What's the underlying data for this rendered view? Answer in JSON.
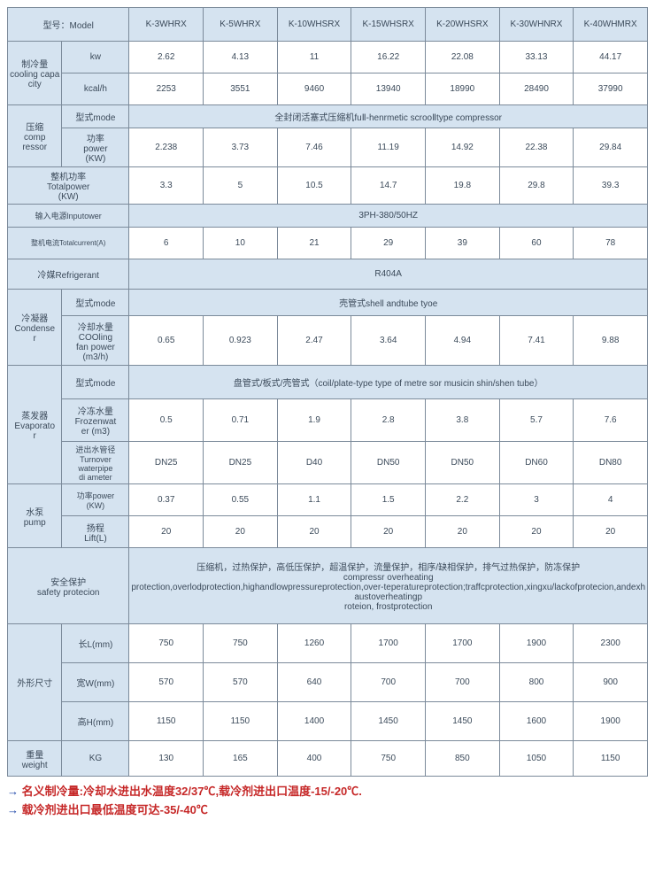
{
  "colors": {
    "header_bg": "#d5e3f0",
    "data_bg": "#ffffff",
    "border": "#7b8a9a",
    "text": "#3b4a5a",
    "note_red": "#c62828",
    "arrow_blue": "#1741a6"
  },
  "col_widths_pct": [
    8.5,
    10.5,
    11.57,
    11.57,
    11.57,
    11.57,
    11.57,
    11.57,
    11.57
  ],
  "models_header": "型号：Model",
  "models": [
    "K-3WHRX",
    "K-5WHRX",
    "K-10WHSRX",
    "K-15WHSRX",
    "K-20WHSRX",
    "K-30WHNRX",
    "K-40WHMRX"
  ],
  "rows": {
    "cooling_capacity": {
      "label": "制冷量\ncooling capacity",
      "sub1": "kw",
      "sub2": "kcal/h",
      "kw": [
        "2.62",
        "4.13",
        "11",
        "16.22",
        "22.08",
        "33.13",
        "44.17"
      ],
      "kcal": [
        "2253",
        "3551",
        "9460",
        "13940",
        "18990",
        "28490",
        "37990"
      ]
    },
    "compressor": {
      "label": "压缩\ncomp\nressor",
      "mode": "型式mode",
      "mode_text": "全封闭活塞式压缩机fuⅡ-henrmetic scrooⅡtype compressor",
      "power_label": "功率\npower\n(KW)",
      "power": [
        "2.238",
        "3.73",
        "7.46",
        "11.19",
        "14.92",
        "22.38",
        "29.84"
      ]
    },
    "total_power": {
      "label": "整机功率\nTotalpower\n(KW)",
      "vals": [
        "3.3",
        "5",
        "10.5",
        "14.7",
        "19.8",
        "29.8",
        "39.3"
      ]
    },
    "input_power": {
      "label": "输入电源lnputower",
      "val": "3PH-380/50HZ"
    },
    "total_current": {
      "label": "整机电流Totalcurrent(A)",
      "vals": [
        "6",
        "10",
        "21",
        "29",
        "39",
        "60",
        "78"
      ]
    },
    "refrigerant": {
      "label": "冷媒Refrigerant",
      "val": "R404A"
    },
    "condenser": {
      "label": "冷凝器\nCondense\nr",
      "mode": "型式mode",
      "mode_text": "壳管式shell andtube tyoe",
      "fan_label": "冷却水量\nCOOling\nfan power\n(m3/h)",
      "fan": [
        "0.65",
        "0.923",
        "2.47",
        "3.64",
        "4.94",
        "7.41",
        "9.88"
      ]
    },
    "evaporator": {
      "label": "蒸发器\nEvaporato\nr",
      "mode": "型式mode",
      "mode_text": "盘管式/板式/壳管式（coil/plate-type type of metre sor musicin shin/shen tube）",
      "frozen_label": "冷冻水量\nFrozenwat\ner (m3)",
      "frozen": [
        "0.5",
        "0.71",
        "1.9",
        "2.8",
        "3.8",
        "5.7",
        "7.6"
      ],
      "pipe_label": "进出水管径\nTurnover\nwaterpipe\ndi ameter",
      "pipe": [
        "DN25",
        "DN25",
        "D40",
        "DN50",
        "DN50",
        "DN60",
        "DN80"
      ]
    },
    "pump": {
      "label": "水泵\npump",
      "power_label": "功率power\n(KW)",
      "power": [
        "0.37",
        "0.55",
        "1.1",
        "1.5",
        "2.2",
        "3",
        "4"
      ],
      "lift_label": "扬程\nLift(L)",
      "lift": [
        "20",
        "20",
        "20",
        "20",
        "20",
        "20",
        "20"
      ]
    },
    "safety": {
      "label": "安全保护\nsafety protecion",
      "text": "压缩机，过热保护，高低压保护，超温保护，流量保护，相序/缺相保护，排气过热保护，防冻保护\ncompressr overheating\nprotection,overlodprotection,highandlowpressureprotection,over-teperatureprotection;traffcprotection,xingxu/lackofprotecion,andexhaustoverheatingp\nroteion,     frostprotection"
    },
    "dims": {
      "label": "外形尺寸",
      "L_label": "长L(mm)",
      "L": [
        "750",
        "750",
        "1260",
        "1700",
        "1700",
        "1900",
        "2300"
      ],
      "W_label": "宽W(mm)",
      "W": [
        "570",
        "570",
        "640",
        "700",
        "700",
        "800",
        "900"
      ],
      "H_label": "高H(mm)",
      "H": [
        "1150",
        "1150",
        "1400",
        "1450",
        "1450",
        "1600",
        "1900"
      ]
    },
    "weight": {
      "label": "重量\nweight",
      "unit": "KG",
      "vals": [
        "130",
        "165",
        "400",
        "750",
        "850",
        "1050",
        "1150"
      ]
    }
  },
  "notes": [
    "→ 名义制冷量:冷却水进出水温度32/37℃,载冷剂进出口温度-15/-20℃.",
    "→ 载冷剂进出口最低温度可达-35/-40℃"
  ]
}
